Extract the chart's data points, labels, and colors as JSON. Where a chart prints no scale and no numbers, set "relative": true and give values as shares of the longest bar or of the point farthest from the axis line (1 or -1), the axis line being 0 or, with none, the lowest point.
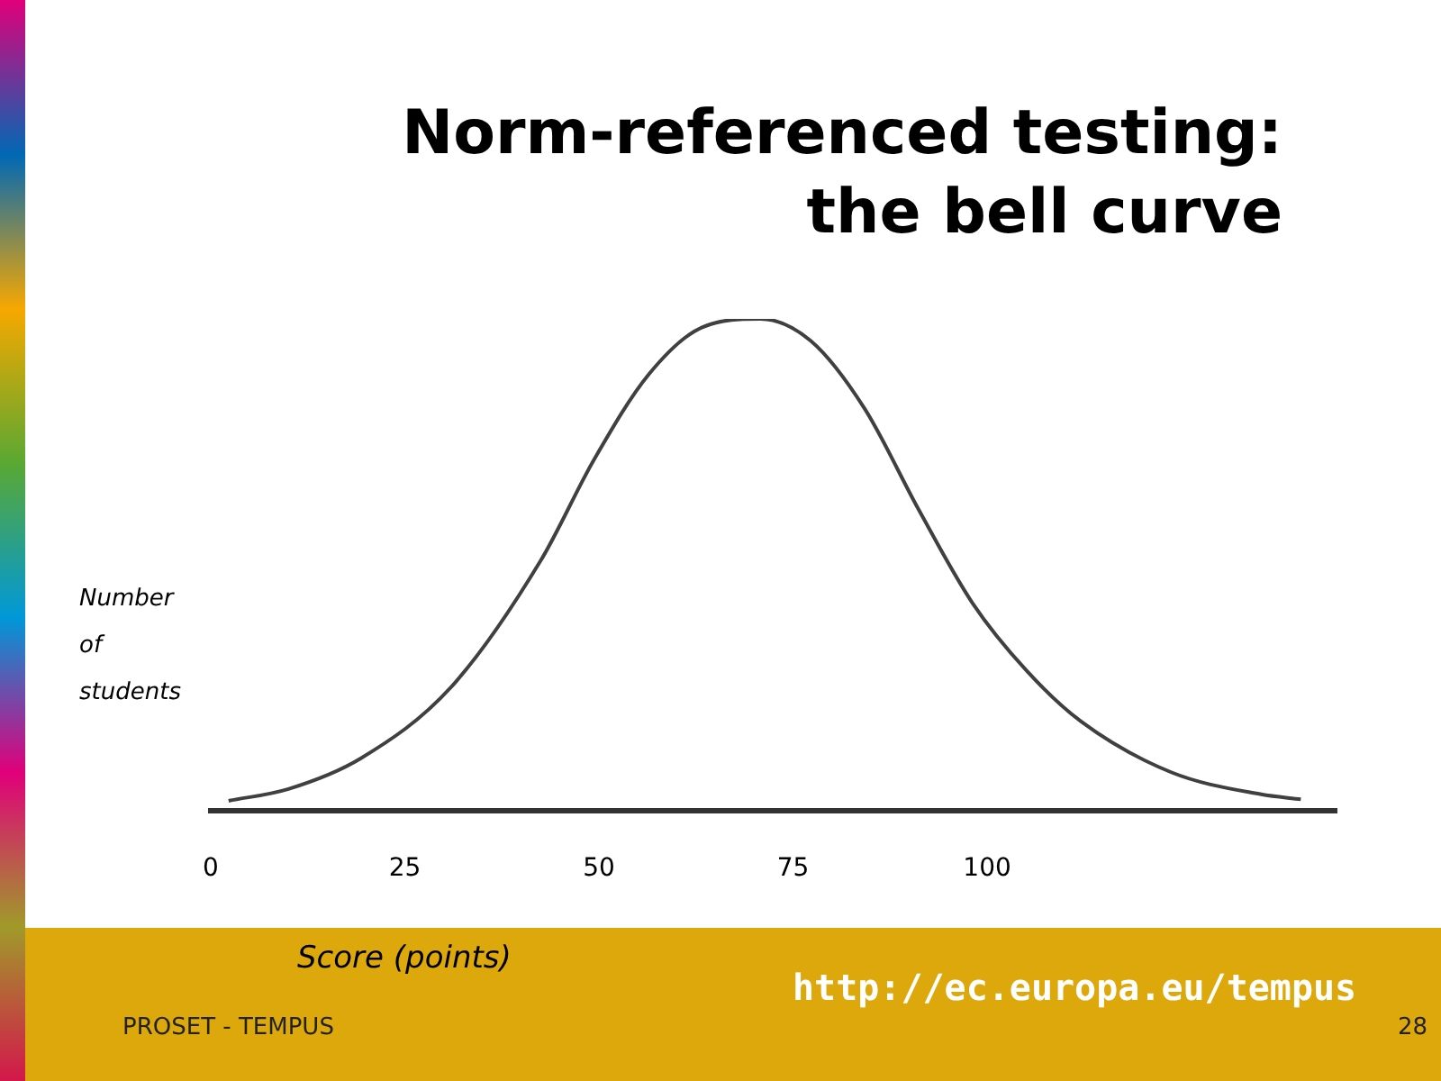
{
  "chart_data": {
    "type": "line",
    "title": "Norm-referenced testing:\nthe bell curve",
    "xlabel": "Score (points)",
    "ylabel": "Number\nof\nstudents",
    "relative": true,
    "x": [
      2.3,
      10,
      19.3,
      30.9,
      42.5,
      49.4,
      56.4,
      63.3,
      70.8,
      77.3,
      84.2,
      91.2,
      98.1,
      105.1,
      112.1,
      123.7,
      135.3,
      140.4
    ],
    "series": [
      {
        "color": "#404040",
        "values": [
          0.021,
          0.045,
          0.107,
          0.251,
          0.509,
          0.715,
          0.887,
          0.983,
          1,
          0.955,
          0.818,
          0.612,
          0.423,
          0.285,
          0.182,
          0.079,
          0.034,
          0.024
        ]
      }
    ],
    "xlim": [
      0,
      145
    ],
    "xticks": [
      0,
      25,
      50,
      75,
      100
    ],
    "grid": false,
    "legend": false,
    "marker": "none",
    "line_style": "solid",
    "annotations": [
      "PROSET - TEMPUS",
      "28",
      "http://ec.europa.eu/tempus"
    ]
  }
}
